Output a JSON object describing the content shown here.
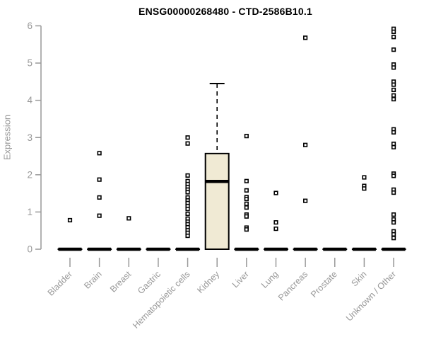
{
  "chart_data": {
    "type": "boxplot",
    "title": "ENSG00000268480 - CTD-2586B10.1",
    "ylabel": "Expression",
    "ylim": [
      0,
      6
    ],
    "yticks": [
      0,
      1,
      2,
      3,
      4,
      5,
      6
    ],
    "grid": "off",
    "categories": [
      "Bladder",
      "Brain",
      "Breast",
      "Gastric",
      "Hematopoietic cells",
      "Kidney",
      "Liver",
      "Lung",
      "Pancreas",
      "Prostate",
      "Skin",
      "Unknown / Other"
    ],
    "series": [
      {
        "category": "Bladder",
        "box": {
          "q1": 0,
          "median": 0,
          "q3": 0,
          "whisker_low": 0,
          "whisker_high": 0
        },
        "outliers": [
          0.78
        ]
      },
      {
        "category": "Brain",
        "box": {
          "q1": 0,
          "median": 0,
          "q3": 0,
          "whisker_low": 0,
          "whisker_high": 0
        },
        "outliers": [
          2.58,
          1.87,
          1.39,
          0.9
        ]
      },
      {
        "category": "Breast",
        "box": {
          "q1": 0,
          "median": 0,
          "q3": 0,
          "whisker_low": 0,
          "whisker_high": 0
        },
        "outliers": [
          0.83
        ]
      },
      {
        "category": "Gastric",
        "box": {
          "q1": 0,
          "median": 0,
          "q3": 0,
          "whisker_low": 0,
          "whisker_high": 0
        },
        "outliers": []
      },
      {
        "category": "Hematopoietic cells",
        "box": {
          "q1": 0,
          "median": 0,
          "q3": 0,
          "whisker_low": 0,
          "whisker_high": 0
        },
        "outliers": [
          3.0,
          2.84,
          1.98,
          1.83,
          1.75,
          1.67,
          1.6,
          1.53,
          1.39,
          1.31,
          1.24,
          1.16,
          1.08,
          0.95,
          0.82,
          0.74,
          0.67,
          0.59,
          0.51,
          0.44,
          0.36
        ]
      },
      {
        "category": "Kidney",
        "box": {
          "q1": 0,
          "median": 1.82,
          "q3": 2.57,
          "whisker_low": 0,
          "whisker_high": 4.45
        },
        "outliers": []
      },
      {
        "category": "Liver",
        "box": {
          "q1": 0,
          "median": 0,
          "q3": 0,
          "whisker_low": 0,
          "whisker_high": 0
        },
        "outliers": [
          3.04,
          1.83,
          1.58,
          1.4,
          1.35,
          1.22,
          1.12,
          0.93,
          0.88,
          0.58,
          0.53
        ]
      },
      {
        "category": "Lung",
        "box": {
          "q1": 0,
          "median": 0,
          "q3": 0,
          "whisker_low": 0,
          "whisker_high": 0
        },
        "outliers": [
          1.51,
          0.72,
          0.55
        ]
      },
      {
        "category": "Pancreas",
        "box": {
          "q1": 0,
          "median": 0,
          "q3": 0,
          "whisker_low": 0,
          "whisker_high": 0
        },
        "outliers": [
          5.68,
          2.8,
          1.3
        ]
      },
      {
        "category": "Prostate",
        "box": {
          "q1": 0,
          "median": 0,
          "q3": 0,
          "whisker_low": 0,
          "whisker_high": 0
        },
        "outliers": []
      },
      {
        "category": "Skin",
        "box": {
          "q1": 0,
          "median": 0,
          "q3": 0,
          "whisker_low": 0,
          "whisker_high": 0
        },
        "outliers": [
          1.93,
          1.7,
          1.63
        ]
      },
      {
        "category": "Unknown / Other",
        "box": {
          "q1": 0,
          "median": 0,
          "q3": 0,
          "whisker_low": 0,
          "whisker_high": 0
        },
        "outliers": [
          5.92,
          5.84,
          5.7,
          5.36,
          4.96,
          4.88,
          4.5,
          4.42,
          4.28,
          4.13,
          4.03,
          3.22,
          3.14,
          2.83,
          2.74,
          2.03,
          1.97,
          1.6,
          1.52,
          0.93,
          0.8,
          0.72,
          0.48,
          0.4,
          0.3
        ]
      }
    ],
    "styles": {
      "box_fill": "#f0ead4",
      "box_stroke": "#000000",
      "median_color": "#000000",
      "whisker_color": "#000000",
      "point_color": "#000000",
      "point_fill": "#ffffff",
      "axis_color": "#999999",
      "label_color": "#989898",
      "title_color": "#000000",
      "background": "#ffffff"
    },
    "legend": "none"
  }
}
